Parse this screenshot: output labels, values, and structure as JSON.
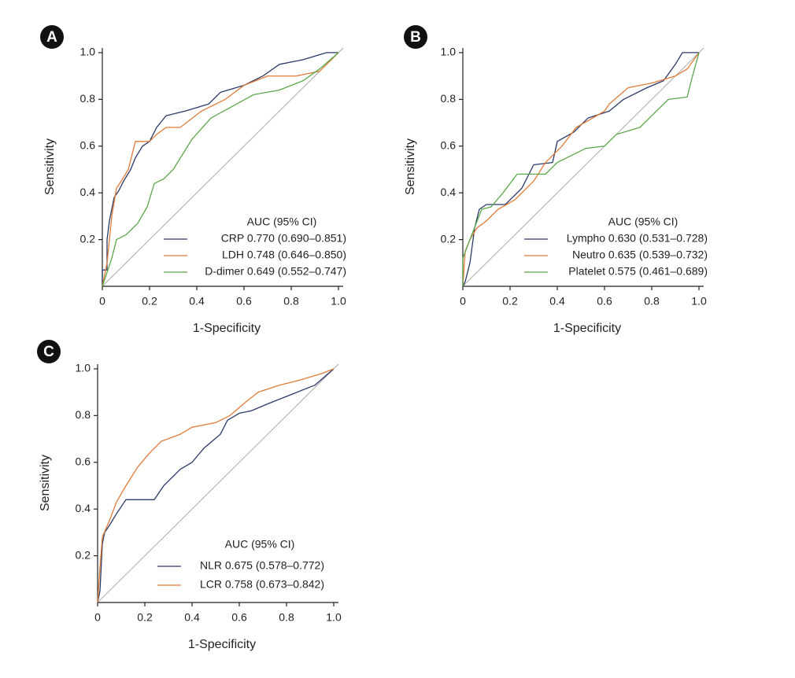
{
  "chart_data": [
    {
      "type": "line",
      "label": "A",
      "xlabel": "1-Specificity",
      "ylabel": "Sensitivity",
      "legend_title": "AUC (95% CI)",
      "xlim": [
        0,
        1.02
      ],
      "ylim": [
        0,
        1.02
      ],
      "xticks": [
        0,
        0.2,
        0.4,
        0.6,
        0.8,
        {
          "value": 1,
          "label": "1.0"
        }
      ],
      "yticks": [
        0.2,
        0.4,
        0.6,
        0.8,
        {
          "value": 1,
          "label": "1.0"
        }
      ],
      "series": [
        {
          "name": "CRP 0.770 (0.690–0.851)",
          "color": "#2b3a67",
          "x": [
            0,
            0,
            0.02,
            0.02,
            0.03,
            0.04,
            0.05,
            0.07,
            0.09,
            0.12,
            0.14,
            0.17,
            0.2,
            0.23,
            0.27,
            0.35,
            0.45,
            0.5,
            0.6,
            0.68,
            0.75,
            0.85,
            0.95,
            1
          ],
          "values": [
            0,
            0.07,
            0.07,
            0.2,
            0.28,
            0.33,
            0.38,
            0.41,
            0.45,
            0.5,
            0.55,
            0.6,
            0.62,
            0.68,
            0.73,
            0.75,
            0.78,
            0.83,
            0.86,
            0.9,
            0.95,
            0.97,
            1,
            1
          ]
        },
        {
          "name": "LDH 0.748 (0.646–0.850)",
          "color": "#e07b39",
          "x": [
            0,
            0.02,
            0.04,
            0.06,
            0.08,
            0.11,
            0.14,
            0.2,
            0.23,
            0.27,
            0.33,
            0.42,
            0.52,
            0.6,
            0.7,
            0.82,
            0.92,
            1
          ],
          "values": [
            0,
            0.1,
            0.3,
            0.42,
            0.45,
            0.5,
            0.62,
            0.62,
            0.65,
            0.68,
            0.68,
            0.75,
            0.8,
            0.86,
            0.9,
            0.9,
            0.92,
            1
          ]
        },
        {
          "name": "D-dimer 0.649 (0.552–0.747)",
          "color": "#5aa84a",
          "x": [
            0,
            0.04,
            0.06,
            0.1,
            0.15,
            0.19,
            0.22,
            0.26,
            0.3,
            0.38,
            0.46,
            0.55,
            0.64,
            0.75,
            0.85,
            0.92,
            1
          ],
          "values": [
            0,
            0.12,
            0.2,
            0.22,
            0.27,
            0.34,
            0.44,
            0.46,
            0.5,
            0.63,
            0.72,
            0.77,
            0.82,
            0.84,
            0.88,
            0.93,
            1
          ]
        }
      ]
    },
    {
      "type": "line",
      "label": "B",
      "xlabel": "1-Specificity",
      "ylabel": "Sensitivity",
      "legend_title": "AUC (95% CI)",
      "xlim": [
        0,
        1.02
      ],
      "ylim": [
        0,
        1.02
      ],
      "xticks": [
        0,
        0.2,
        0.4,
        0.6,
        0.8,
        {
          "value": 1,
          "label": "1.0"
        }
      ],
      "yticks": [
        0.2,
        0.4,
        0.6,
        0.8,
        {
          "value": 1,
          "label": "1.0"
        }
      ],
      "series": [
        {
          "name": "Lympho 0.630 (0.531–0.728)",
          "color": "#2b3a67",
          "x": [
            0,
            0.01,
            0.03,
            0.05,
            0.07,
            0.1,
            0.18,
            0.25,
            0.3,
            0.38,
            0.4,
            0.47,
            0.53,
            0.62,
            0.68,
            0.78,
            0.85,
            0.9,
            0.93,
            1
          ],
          "values": [
            0,
            0.02,
            0.1,
            0.25,
            0.33,
            0.35,
            0.35,
            0.42,
            0.52,
            0.53,
            0.62,
            0.66,
            0.72,
            0.75,
            0.8,
            0.85,
            0.88,
            0.95,
            1,
            1
          ]
        },
        {
          "name": "Neutro 0.635  (0.539–0.732)",
          "color": "#e07b39",
          "x": [
            0,
            0.01,
            0.03,
            0.06,
            0.1,
            0.15,
            0.22,
            0.3,
            0.35,
            0.42,
            0.48,
            0.55,
            0.6,
            0.62,
            0.7,
            0.8,
            0.9,
            0.95,
            1
          ],
          "values": [
            0,
            0.15,
            0.2,
            0.25,
            0.28,
            0.33,
            0.37,
            0.45,
            0.53,
            0.6,
            0.68,
            0.72,
            0.75,
            0.78,
            0.85,
            0.87,
            0.9,
            0.93,
            1
          ]
        },
        {
          "name": "Platelet 0.575 (0.461–0.689)",
          "color": "#5aa84a",
          "x": [
            0,
            0,
            0.03,
            0.08,
            0.12,
            0.17,
            0.23,
            0.35,
            0.4,
            0.52,
            0.6,
            0.65,
            0.75,
            0.8,
            0.87,
            0.95,
            0.97,
            1
          ],
          "values": [
            0,
            0.12,
            0.2,
            0.33,
            0.34,
            0.4,
            0.48,
            0.48,
            0.53,
            0.59,
            0.6,
            0.65,
            0.68,
            0.73,
            0.8,
            0.81,
            0.89,
            1
          ]
        }
      ]
    },
    {
      "type": "line",
      "label": "C",
      "xlabel": "1-Specificity",
      "ylabel": "Sensitivity",
      "legend_title": "AUC (95% CI)",
      "xlim": [
        0,
        1.02
      ],
      "ylim": [
        0,
        1.02
      ],
      "xticks": [
        0,
        0.2,
        0.4,
        0.6,
        0.8,
        {
          "value": 1,
          "label": "1.0"
        }
      ],
      "yticks": [
        0.2,
        0.4,
        0.6,
        0.8,
        {
          "value": 1,
          "label": "1.0"
        }
      ],
      "series": [
        {
          "name": "NLR 0.675 (0.578–0.772)",
          "color": "#2b3a67",
          "x": [
            0,
            0.01,
            0.02,
            0.03,
            0.05,
            0.08,
            0.12,
            0.24,
            0.28,
            0.35,
            0.4,
            0.45,
            0.52,
            0.55,
            0.6,
            0.65,
            0.72,
            0.82,
            0.92,
            1
          ],
          "values": [
            0,
            0.05,
            0.25,
            0.3,
            0.33,
            0.38,
            0.44,
            0.44,
            0.5,
            0.57,
            0.6,
            0.66,
            0.72,
            0.78,
            0.81,
            0.82,
            0.85,
            0.89,
            0.93,
            1
          ]
        },
        {
          "name": "LCR 0.758 (0.673–0.842)",
          "color": "#e07b39",
          "x": [
            0,
            0.01,
            0.02,
            0.05,
            0.08,
            0.12,
            0.17,
            0.22,
            0.27,
            0.35,
            0.4,
            0.5,
            0.56,
            0.63,
            0.68,
            0.77,
            0.85,
            0.95,
            1
          ],
          "values": [
            0,
            0.15,
            0.28,
            0.35,
            0.43,
            0.5,
            0.58,
            0.64,
            0.69,
            0.72,
            0.75,
            0.77,
            0.8,
            0.86,
            0.9,
            0.93,
            0.95,
            0.98,
            1
          ]
        }
      ]
    }
  ]
}
